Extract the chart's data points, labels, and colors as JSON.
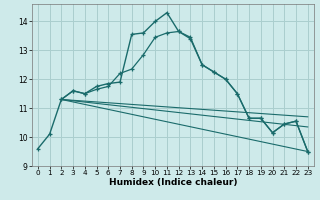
{
  "xlabel": "Humidex (Indice chaleur)",
  "background_color": "#ceeaea",
  "grid_color": "#aacece",
  "line_color": "#1a6b6b",
  "xlim": [
    -0.5,
    23.5
  ],
  "ylim": [
    9.0,
    14.6
  ],
  "yticks": [
    9,
    10,
    11,
    12,
    13,
    14
  ],
  "xticks": [
    0,
    1,
    2,
    3,
    4,
    5,
    6,
    7,
    8,
    9,
    10,
    11,
    12,
    13,
    14,
    15,
    16,
    17,
    18,
    19,
    20,
    21,
    22,
    23
  ],
  "series1_x": [
    0,
    1,
    2,
    3,
    4,
    5,
    6,
    7,
    8,
    9,
    10,
    11,
    12,
    13,
    14,
    15,
    16,
    17,
    18,
    19,
    20,
    21,
    22,
    23
  ],
  "series1_y": [
    9.6,
    10.1,
    11.3,
    11.6,
    11.5,
    11.75,
    11.85,
    11.9,
    13.55,
    13.6,
    14.0,
    14.3,
    13.65,
    13.4,
    12.5,
    12.25,
    12.0,
    11.5,
    10.65,
    10.65,
    10.15,
    10.45,
    10.55,
    9.5
  ],
  "series2_x": [
    2,
    3,
    4,
    5,
    6,
    7,
    8,
    9,
    10,
    11,
    12,
    13,
    14,
    15,
    16,
    17,
    18,
    19,
    20,
    21,
    22,
    23
  ],
  "series2_y": [
    11.3,
    11.6,
    11.5,
    11.65,
    11.75,
    12.2,
    12.35,
    12.85,
    13.45,
    13.6,
    13.65,
    13.45,
    12.5,
    12.25,
    12.0,
    11.5,
    10.65,
    10.65,
    10.15,
    10.45,
    10.55,
    9.5
  ],
  "line1_x": [
    2,
    23
  ],
  "line1_y": [
    11.3,
    10.7
  ],
  "line2_x": [
    2,
    23
  ],
  "line2_y": [
    11.3,
    10.35
  ],
  "line3_x": [
    2,
    23
  ],
  "line3_y": [
    11.3,
    9.5
  ]
}
